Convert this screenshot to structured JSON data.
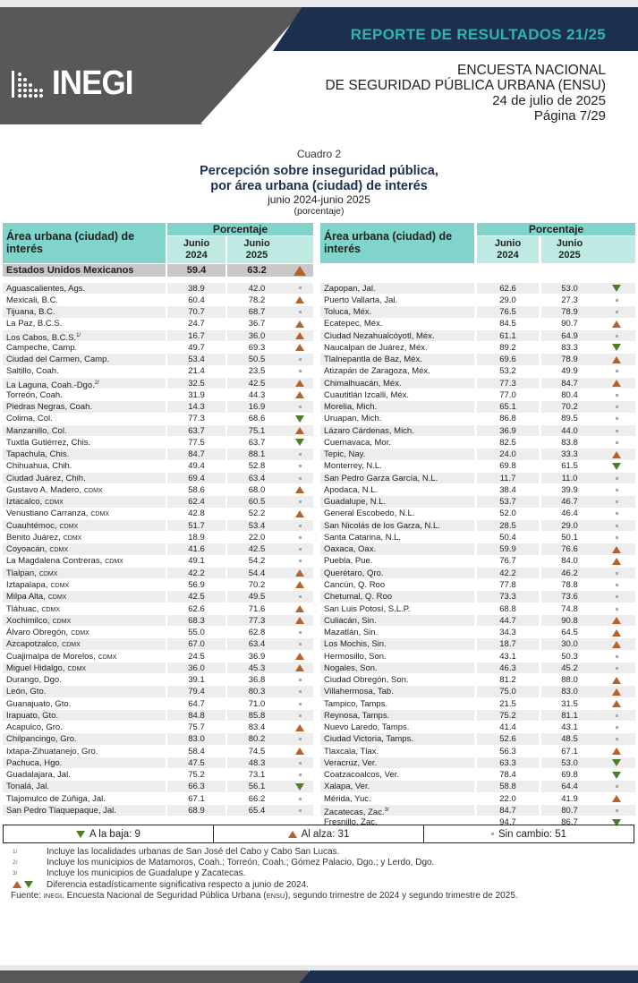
{
  "header": {
    "report": "REPORTE DE RESULTADOS 21/25",
    "logo": "INEGI",
    "survey_line1": "ENCUESTA NACIONAL",
    "survey_line2": "DE SEGURIDAD PÚBLICA URBANA (ENSU)",
    "date": "24 de julio de 2025",
    "page": "Página 7/29"
  },
  "colors": {
    "navy": "#1c2f4f",
    "teal": "#2db6a9",
    "header_teal": "#80d4cb",
    "up": "#b5612a",
    "down": "#4e7d2a"
  },
  "caption": {
    "cuadro": "Cuadro 2",
    "title1": "Percepción sobre inseguridad pública,",
    "title2": "por área urbana (ciudad) de interés",
    "period": "junio 2024-junio 2025",
    "unit": "(porcentaje)"
  },
  "table_header": {
    "area": "Área urbana (ciudad) de interés",
    "pct": "Porcentaje",
    "col1a": "Junio",
    "col1b": "2024",
    "col2a": "Junio",
    "col2b": "2025"
  },
  "national": {
    "name": "Estados Unidos Mexicanos",
    "v2024": "59.4",
    "v2025": "63.2",
    "change": "up"
  },
  "left_rows": [
    {
      "name": "Aguascalientes, Ags.",
      "v2024": "38.9",
      "v2025": "42.0",
      "change": "same"
    },
    {
      "name": "Mexicali, B.C.",
      "v2024": "60.4",
      "v2025": "78.2",
      "change": "up"
    },
    {
      "name": "Tijuana, B.C.",
      "v2024": "70.7",
      "v2025": "68.7",
      "change": "same"
    },
    {
      "name": "La Paz, B.C.S.",
      "v2024": "24.7",
      "v2025": "36.7",
      "change": "up"
    },
    {
      "name": "Los Cabos, B.C.S.",
      "note": "1/",
      "v2024": "16.7",
      "v2025": "36.0",
      "change": "up"
    },
    {
      "name": "Campeche, Camp.",
      "v2024": "49.7",
      "v2025": "69.3",
      "change": "up"
    },
    {
      "name": "Ciudad del Carmen, Camp.",
      "v2024": "53.4",
      "v2025": "50.5",
      "change": "same"
    },
    {
      "name": "Saltillo, Coah.",
      "v2024": "21.4",
      "v2025": "23.5",
      "change": "same"
    },
    {
      "name": "La Laguna, Coah.-Dgo.",
      "note": "2/",
      "v2024": "32.5",
      "v2025": "42.5",
      "change": "up"
    },
    {
      "name": "Torreón, Coah.",
      "v2024": "31.9",
      "v2025": "44.3",
      "change": "up"
    },
    {
      "name": "Piedras Negras, Coah.",
      "v2024": "14.3",
      "v2025": "16.9",
      "change": "same"
    },
    {
      "name": "Colima, Col.",
      "v2024": "77.3",
      "v2025": "68.6",
      "change": "down"
    },
    {
      "name": "Manzanillo, Col.",
      "v2024": "63.7",
      "v2025": "75.1",
      "change": "up"
    },
    {
      "name": "Tuxtla Gutiérrez, Chis.",
      "v2024": "77.5",
      "v2025": "63.7",
      "change": "down"
    },
    {
      "name": "Tapachula, Chis.",
      "v2024": "84.7",
      "v2025": "88.1",
      "change": "same"
    },
    {
      "name": "Chihuahua, Chih.",
      "v2024": "49.4",
      "v2025": "52.8",
      "change": "same"
    },
    {
      "name": "Ciudad Juárez, Chih.",
      "v2024": "69.4",
      "v2025": "63.4",
      "change": "same"
    },
    {
      "name": "Gustavo A. Madero,",
      "sc": "CDMX",
      "v2024": "58.6",
      "v2025": "68.0",
      "change": "up"
    },
    {
      "name": "Iztacalco,",
      "sc": "CDMX",
      "v2024": "62.4",
      "v2025": "60.5",
      "change": "same"
    },
    {
      "name": "Venustiano Carranza,",
      "sc": "CDMX",
      "v2024": "42.8",
      "v2025": "52.2",
      "change": "up"
    },
    {
      "name": "Cuauhtémoc,",
      "sc": "CDMX",
      "v2024": "51.7",
      "v2025": "53.4",
      "change": "same"
    },
    {
      "name": "Benito Juárez,",
      "sc": "CDMX",
      "v2024": "18.9",
      "v2025": "22.0",
      "change": "same"
    },
    {
      "name": "Coyoacán,",
      "sc": "CDMX",
      "v2024": "41.6",
      "v2025": "42.5",
      "change": "same"
    },
    {
      "name": "La Magdalena Contreras,",
      "sc": "CDMX",
      "v2024": "49.1",
      "v2025": "54.2",
      "change": "same"
    },
    {
      "name": "Tlalpan,",
      "sc": "CDMX",
      "v2024": "42.2",
      "v2025": "54.4",
      "change": "up"
    },
    {
      "name": "Iztapalapa,",
      "sc": "CDMX",
      "v2024": "56.9",
      "v2025": "70.2",
      "change": "up"
    },
    {
      "name": "Milpa Alta,",
      "sc": "CDMX",
      "v2024": "42.5",
      "v2025": "49.5",
      "change": "same"
    },
    {
      "name": "Tláhuac,",
      "sc": "CDMX",
      "v2024": "62.6",
      "v2025": "71.6",
      "change": "up"
    },
    {
      "name": "Xochimilco,",
      "sc": "CDMX",
      "v2024": "68.3",
      "v2025": "77.3",
      "change": "up"
    },
    {
      "name": "Álvaro Obregón,",
      "sc": "CDMX",
      "v2024": "55.0",
      "v2025": "62.8",
      "change": "same"
    },
    {
      "name": "Azcapotzalco,",
      "sc": "CDMX",
      "v2024": "67.0",
      "v2025": "63.4",
      "change": "same"
    },
    {
      "name": "Cuajimalpa de Morelos,",
      "sc": "CDMX",
      "v2024": "24.5",
      "v2025": "36.9",
      "change": "up"
    },
    {
      "name": "Miguel Hidalgo,",
      "sc": "CDMX",
      "v2024": "36.0",
      "v2025": "45.3",
      "change": "up"
    },
    {
      "name": "Durango, Dgo.",
      "v2024": "39.1",
      "v2025": "36.8",
      "change": "same"
    },
    {
      "name": "León, Gto.",
      "v2024": "79.4",
      "v2025": "80.3",
      "change": "same"
    },
    {
      "name": "Guanajuato, Gto.",
      "v2024": "64.7",
      "v2025": "71.0",
      "change": "same"
    },
    {
      "name": "Irapuato, Gto.",
      "v2024": "84.8",
      "v2025": "85.8",
      "change": "same"
    },
    {
      "name": "Acapulco, Gro.",
      "v2024": "75.7",
      "v2025": "83.4",
      "change": "up"
    },
    {
      "name": "Chilpancingo, Gro.",
      "v2024": "83.0",
      "v2025": "80.2",
      "change": "same"
    },
    {
      "name": "Ixtapa-Zihuatanejo, Gro.",
      "v2024": "58.4",
      "v2025": "74.5",
      "change": "up"
    },
    {
      "name": "Pachuca, Hgo.",
      "v2024": "47.5",
      "v2025": "48.3",
      "change": "same"
    },
    {
      "name": "Guadalajara, Jal.",
      "v2024": "75.2",
      "v2025": "73.1",
      "change": "same"
    },
    {
      "name": "Tonalá, Jal.",
      "v2024": "66.3",
      "v2025": "56.1",
      "change": "down"
    },
    {
      "name": "Tlajomulco de Zúñiga, Jal.",
      "v2024": "67.1",
      "v2025": "66.2",
      "change": "same"
    },
    {
      "name": "San Pedro Tlaquepaque, Jal.",
      "v2024": "68.9",
      "v2025": "65.4",
      "change": "same"
    }
  ],
  "right_rows": [
    {
      "name": "Zapopan, Jal.",
      "v2024": "62.6",
      "v2025": "53.0",
      "change": "down"
    },
    {
      "name": "Puerto Vallarta, Jal.",
      "v2024": "29.0",
      "v2025": "27.3",
      "change": "same"
    },
    {
      "name": "Toluca, Méx.",
      "v2024": "76.5",
      "v2025": "78.9",
      "change": "same"
    },
    {
      "name": "Ecatepec, Méx.",
      "v2024": "84.5",
      "v2025": "90.7",
      "change": "up"
    },
    {
      "name": "Ciudad Nezahualcóyotl, Méx.",
      "v2024": "61.1",
      "v2025": "64.9",
      "change": "same"
    },
    {
      "name": "Naucalpan de Juárez, Méx.",
      "v2024": "89.2",
      "v2025": "83.3",
      "change": "down"
    },
    {
      "name": "Tlalnepantla de Baz, Méx.",
      "v2024": "69.6",
      "v2025": "78.9",
      "change": "up"
    },
    {
      "name": "Atizapán de Zaragoza, Méx.",
      "v2024": "53.2",
      "v2025": "49.9",
      "change": "same"
    },
    {
      "name": "Chimalhuacán, Méx.",
      "v2024": "77.3",
      "v2025": "84.7",
      "change": "up"
    },
    {
      "name": "Cuautitlán Izcalli, Méx.",
      "v2024": "77.0",
      "v2025": "80.4",
      "change": "same"
    },
    {
      "name": "Morelia, Mich.",
      "v2024": "65.1",
      "v2025": "70.2",
      "change": "same"
    },
    {
      "name": "Uruapan, Mich.",
      "v2024": "86.8",
      "v2025": "89.5",
      "change": "same"
    },
    {
      "name": "Lázaro Cárdenas, Mich.",
      "v2024": "36.9",
      "v2025": "44.0",
      "change": "same"
    },
    {
      "name": "Cuernavaca, Mor.",
      "v2024": "82.5",
      "v2025": "83.8",
      "change": "same"
    },
    {
      "name": "Tepic, Nay.",
      "v2024": "24.0",
      "v2025": "33.3",
      "change": "up"
    },
    {
      "name": "Monterrey, N.L.",
      "v2024": "69.8",
      "v2025": "61.5",
      "change": "down"
    },
    {
      "name": "San Pedro Garza García, N.L.",
      "v2024": "11.7",
      "v2025": "11.0",
      "change": "same"
    },
    {
      "name": "Apodaca, N.L.",
      "v2024": "38.4",
      "v2025": "39.9",
      "change": "same"
    },
    {
      "name": "Guadalupe, N.L.",
      "v2024": "53.7",
      "v2025": "46.7",
      "change": "same"
    },
    {
      "name": "General Escobedo, N.L.",
      "v2024": "52.0",
      "v2025": "46.4",
      "change": "same"
    },
    {
      "name": "San Nicolás de los Garza, N.L.",
      "v2024": "28.5",
      "v2025": "29.0",
      "change": "same"
    },
    {
      "name": "Santa Catarina, N.L.",
      "v2024": "50.4",
      "v2025": "50.1",
      "change": "same"
    },
    {
      "name": "Oaxaca, Oax.",
      "v2024": "59.9",
      "v2025": "76.6",
      "change": "up"
    },
    {
      "name": "Puebla, Pue.",
      "v2024": "76.7",
      "v2025": "84.0",
      "change": "up"
    },
    {
      "name": "Querétaro, Qro.",
      "v2024": "42.2",
      "v2025": "46.2",
      "change": "same"
    },
    {
      "name": "Cancún, Q. Roo",
      "v2024": "77.8",
      "v2025": "78.8",
      "change": "same"
    },
    {
      "name": "Chetumal, Q. Roo",
      "v2024": "73.3",
      "v2025": "73.6",
      "change": "same"
    },
    {
      "name": "San Luis Potosí, S.L.P.",
      "v2024": "68.8",
      "v2025": "74.8",
      "change": "same"
    },
    {
      "name": "Culiacán, Sin.",
      "v2024": "44.7",
      "v2025": "90.8",
      "change": "up"
    },
    {
      "name": "Mazatlán, Sin.",
      "v2024": "34.3",
      "v2025": "64.5",
      "change": "up"
    },
    {
      "name": "Los Mochis, Sin.",
      "v2024": "18.7",
      "v2025": "30.0",
      "change": "up"
    },
    {
      "name": "Hermosillo, Son.",
      "v2024": "43.1",
      "v2025": "50.3",
      "change": "same"
    },
    {
      "name": "Nogales, Son.",
      "v2024": "46.3",
      "v2025": "45.2",
      "change": "same"
    },
    {
      "name": "Ciudad Obregón, Son.",
      "v2024": "81.2",
      "v2025": "88.0",
      "change": "up"
    },
    {
      "name": "Villahermosa, Tab.",
      "v2024": "75.0",
      "v2025": "83.0",
      "change": "up"
    },
    {
      "name": "Tampico, Tamps.",
      "v2024": "21.5",
      "v2025": "31.5",
      "change": "up"
    },
    {
      "name": "Reynosa, Tamps.",
      "v2024": "75.2",
      "v2025": "81.1",
      "change": "same"
    },
    {
      "name": "Nuevo Laredo, Tamps.",
      "v2024": "41.4",
      "v2025": "43.1",
      "change": "same"
    },
    {
      "name": "Ciudad Victoria, Tamps.",
      "v2024": "52.6",
      "v2025": "48.5",
      "change": "same"
    },
    {
      "name": "Tlaxcala, Tlax.",
      "v2024": "56.3",
      "v2025": "67.1",
      "change": "up"
    },
    {
      "name": "Veracruz, Ver.",
      "v2024": "63.3",
      "v2025": "53.0",
      "change": "down"
    },
    {
      "name": "Coatzacoalcos, Ver.",
      "v2024": "78.4",
      "v2025": "69.8",
      "change": "down"
    },
    {
      "name": "Xalapa, Ver.",
      "v2024": "58.8",
      "v2025": "64.4",
      "change": "same"
    },
    {
      "name": "Mérida, Yuc.",
      "v2024": "22.0",
      "v2025": "41.9",
      "change": "up"
    },
    {
      "name": "Zacatecas, Zac.",
      "note": "3/",
      "v2024": "84.7",
      "v2025": "80.7",
      "change": "same"
    },
    {
      "name": "Fresnillo, Zac.",
      "v2024": "94.7",
      "v2025": "86.7",
      "change": "down"
    }
  ],
  "legend": {
    "down": "A la baja: 9",
    "up": "Al alza: 31",
    "same": "Sin cambio: 51"
  },
  "notes": {
    "k1": "1/",
    "n1": "Incluye las localidades urbanas de San José del Cabo y Cabo San Lucas.",
    "k2": "2/",
    "n2": "Incluye los municipios de Matamoros, Coah.; Torreón, Coah.; Gómez Palacio, Dgo.; y Lerdo, Dgo.",
    "k3": "3/",
    "n3": "Incluye los municipios de Guadalupe y Zacatecas.",
    "n4": "Diferencia estadísticamente significativa respecto a junio de 2024.",
    "src_label": "Fuente:",
    "src_inegi": "INEGI",
    "src_mid": ". Encuesta Nacional de Seguridad Pública Urbana (",
    "src_ensu": "ENSU",
    "src_end": "), segundo trimestre de 2024 y segundo trimestre de 2025."
  }
}
